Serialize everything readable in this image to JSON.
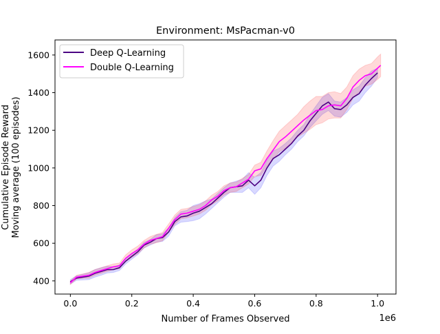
{
  "chart_data": {
    "type": "line",
    "title": "Environment: MsPacman-v0",
    "xlabel": "Number of Frames Observed",
    "ylabel_lines": [
      "Cumulative Episode Reward",
      "Moving average (100 episodes)"
    ],
    "x_offset_label": "1e6",
    "xlim": [
      -0.05,
      1.06
    ],
    "ylim": [
      330,
      1680
    ],
    "x_ticks": [
      0.0,
      0.2,
      0.4,
      0.6,
      0.8,
      1.0
    ],
    "x_tick_labels": [
      "0.0",
      "0.2",
      "0.4",
      "0.6",
      "0.8",
      "1.0"
    ],
    "y_ticks": [
      400,
      600,
      800,
      1000,
      1200,
      1400,
      1600
    ],
    "y_tick_labels": [
      "400",
      "600",
      "800",
      "1000",
      "1200",
      "1400",
      "1600"
    ],
    "grid": false,
    "legend_position": "top-left",
    "series": [
      {
        "name": "Deep Q-Learning",
        "color": "#4b0082",
        "band_color": "#0000ff",
        "x": [
          0.0,
          0.02,
          0.04,
          0.06,
          0.08,
          0.1,
          0.12,
          0.14,
          0.16,
          0.18,
          0.2,
          0.22,
          0.24,
          0.26,
          0.28,
          0.3,
          0.32,
          0.34,
          0.36,
          0.38,
          0.4,
          0.42,
          0.44,
          0.46,
          0.48,
          0.5,
          0.52,
          0.54,
          0.56,
          0.58,
          0.6,
          0.62,
          0.64,
          0.66,
          0.68,
          0.7,
          0.72,
          0.74,
          0.76,
          0.78,
          0.8,
          0.82,
          0.84,
          0.86,
          0.88,
          0.9,
          0.92,
          0.94,
          0.96,
          0.98,
          1.0
        ],
        "values": [
          395,
          415,
          420,
          425,
          440,
          450,
          460,
          460,
          470,
          505,
          530,
          555,
          590,
          605,
          625,
          630,
          660,
          715,
          740,
          745,
          760,
          770,
          790,
          810,
          840,
          870,
          895,
          900,
          905,
          935,
          905,
          935,
          1000,
          1050,
          1070,
          1100,
          1130,
          1170,
          1200,
          1250,
          1290,
          1330,
          1350,
          1315,
          1310,
          1335,
          1375,
          1395,
          1440,
          1475,
          1505
        ],
        "band_half_width": [
          12,
          12,
          15,
          18,
          20,
          20,
          18,
          15,
          15,
          15,
          15,
          15,
          15,
          15,
          20,
          20,
          22,
          22,
          28,
          30,
          40,
          40,
          35,
          25,
          25,
          25,
          25,
          30,
          35,
          40,
          45,
          40,
          40,
          40,
          35,
          30,
          30,
          30,
          30,
          35,
          40,
          45,
          45,
          40,
          40,
          40,
          40,
          40,
          40,
          40,
          25
        ]
      },
      {
        "name": "Double Q-Learning",
        "color": "#ff00ff",
        "band_color": "#ff0000",
        "x": [
          0.0,
          0.02,
          0.04,
          0.06,
          0.08,
          0.1,
          0.12,
          0.14,
          0.16,
          0.18,
          0.2,
          0.22,
          0.24,
          0.26,
          0.28,
          0.3,
          0.32,
          0.34,
          0.36,
          0.38,
          0.4,
          0.42,
          0.44,
          0.46,
          0.48,
          0.5,
          0.52,
          0.54,
          0.56,
          0.58,
          0.6,
          0.62,
          0.64,
          0.66,
          0.68,
          0.7,
          0.72,
          0.74,
          0.76,
          0.78,
          0.8,
          0.82,
          0.84,
          0.86,
          0.88,
          0.9,
          0.92,
          0.94,
          0.96,
          0.98,
          1.0,
          1.01
        ],
        "values": [
          390,
          420,
          425,
          430,
          445,
          455,
          465,
          475,
          480,
          520,
          545,
          565,
          595,
          615,
          625,
          635,
          680,
          725,
          755,
          760,
          770,
          780,
          800,
          830,
          850,
          880,
          895,
          900,
          920,
          940,
          985,
          995,
          1050,
          1095,
          1140,
          1165,
          1195,
          1225,
          1255,
          1280,
          1305,
          1310,
          1330,
          1335,
          1330,
          1370,
          1430,
          1465,
          1490,
          1500,
          1530,
          1545
        ],
        "band_half_width": [
          10,
          10,
          12,
          15,
          15,
          15,
          15,
          15,
          15,
          18,
          20,
          20,
          20,
          20,
          22,
          22,
          22,
          25,
          25,
          25,
          25,
          25,
          25,
          25,
          25,
          25,
          25,
          25,
          25,
          25,
          30,
          35,
          40,
          50,
          55,
          60,
          60,
          60,
          70,
          75,
          75,
          70,
          70,
          70,
          65,
          60,
          60,
          60,
          55,
          55,
          60,
          60
        ]
      }
    ]
  }
}
